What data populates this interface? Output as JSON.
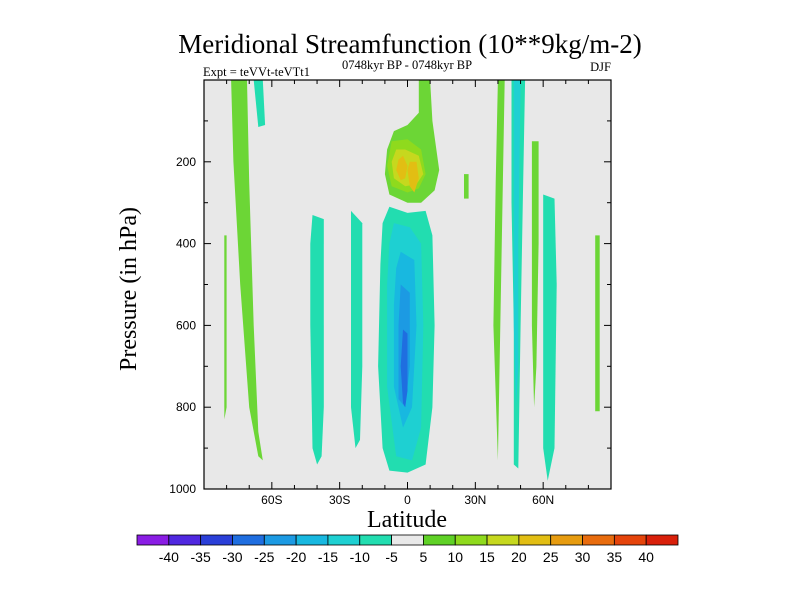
{
  "chart_data": {
    "type": "contour",
    "title": "Meridional Streamfunction (10**9kg/m-2)",
    "experiment": "Expt = teVVt-teVTt1",
    "period": "0748kyr BP - 0748kyr BP",
    "season": "DJF",
    "xlabel": "Latitude",
    "ylabel": "Pressure (in hPa)",
    "xlim": [
      -90,
      90
    ],
    "ylim": [
      1000,
      0
    ],
    "x_ticks": [
      {
        "value": -60,
        "label": "60S"
      },
      {
        "value": -30,
        "label": "30S"
      },
      {
        "value": 0,
        "label": "0"
      },
      {
        "value": 30,
        "label": "30N"
      },
      {
        "value": 60,
        "label": "60N"
      }
    ],
    "y_ticks": [
      {
        "value": 200,
        "label": "200"
      },
      {
        "value": 400,
        "label": "400"
      },
      {
        "value": 600,
        "label": "600"
      },
      {
        "value": 800,
        "label": "800"
      },
      {
        "value": 1000,
        "label": "1000"
      }
    ],
    "background_color": "#e8e8e8",
    "levels": [
      -40,
      -35,
      -30,
      -25,
      -20,
      -15,
      -10,
      -5,
      5,
      10,
      15,
      20,
      25,
      30,
      35,
      40
    ],
    "level_labels": [
      "-40",
      "-35",
      "-30",
      "-25",
      "-20",
      "-15",
      "-10",
      "-5",
      "5",
      "10",
      "15",
      "20",
      "25",
      "30",
      "35",
      "40"
    ],
    "colorbar_colors": [
      "#8a1de4",
      "#5028e0",
      "#2a3fd8",
      "#1f6ee0",
      "#1c9ae3",
      "#18b8e0",
      "#1ed0d2",
      "#22ddb0",
      "#e9e9e9",
      "#5fd126",
      "#8fda1d",
      "#c6d81e",
      "#e2be13",
      "#e79c10",
      "#e86c0e",
      "#e5440b",
      "#d9200a"
    ],
    "features": [
      {
        "name": "positive-band-60s",
        "level": 5,
        "color": "#6cd636",
        "points": [
          [
            -78,
            0
          ],
          [
            -71,
            0
          ],
          [
            -70,
            250
          ],
          [
            -68,
            600
          ],
          [
            -66,
            860
          ],
          [
            -64,
            930
          ],
          [
            -66,
            920
          ],
          [
            -70,
            800
          ],
          [
            -74,
            500
          ],
          [
            -77,
            200
          ]
        ]
      },
      {
        "name": "positive-strip-78s",
        "level": 5,
        "color": "#6cd636",
        "points": [
          [
            -81,
            380
          ],
          [
            -80,
            380
          ],
          [
            -80,
            800
          ],
          [
            -81,
            830
          ]
        ]
      },
      {
        "name": "negative-band-70s",
        "level": -5,
        "color": "#22ddb0",
        "points": [
          [
            -68,
            0
          ],
          [
            -64,
            0
          ],
          [
            -63,
            110
          ],
          [
            -66,
            115
          ]
        ]
      },
      {
        "name": "negative-column-40s",
        "level": -5,
        "color": "#22ddb0",
        "points": [
          [
            -42,
            330
          ],
          [
            -37,
            340
          ],
          [
            -37,
            800
          ],
          [
            -38,
            920
          ],
          [
            -40,
            940
          ],
          [
            -42,
            900
          ],
          [
            -43,
            600
          ],
          [
            -43,
            400
          ]
        ]
      },
      {
        "name": "negative-column-20s",
        "level": -5,
        "color": "#22ddb0",
        "points": [
          [
            -25,
            320
          ],
          [
            -20,
            350
          ],
          [
            -20,
            700
          ],
          [
            -21,
            880
          ],
          [
            -23,
            900
          ],
          [
            -25,
            800
          ],
          [
            -25,
            500
          ]
        ]
      },
      {
        "name": "negative-cell-equator",
        "level": -5,
        "color": "#22ddb0",
        "points": [
          [
            -8,
            310
          ],
          [
            0,
            325
          ],
          [
            8,
            320
          ],
          [
            11,
            380
          ],
          [
            12,
            600
          ],
          [
            11,
            800
          ],
          [
            8,
            940
          ],
          [
            0,
            960
          ],
          [
            -8,
            955
          ],
          [
            -11,
            900
          ],
          [
            -13,
            700
          ],
          [
            -12,
            450
          ],
          [
            -11,
            350
          ]
        ]
      },
      {
        "name": "negative-cell-equator-10",
        "level": -10,
        "color": "#1ed0d2",
        "points": [
          [
            -6,
            350
          ],
          [
            1,
            360
          ],
          [
            6,
            400
          ],
          [
            7,
            600
          ],
          [
            6,
            850
          ],
          [
            2,
            930
          ],
          [
            -5,
            920
          ],
          [
            -9,
            750
          ],
          [
            -9,
            500
          ],
          [
            -8,
            400
          ]
        ]
      },
      {
        "name": "negative-cell-equator-15",
        "level": -15,
        "color": "#18b8e0",
        "points": [
          [
            -3,
            420
          ],
          [
            3,
            440
          ],
          [
            4,
            600
          ],
          [
            2,
            800
          ],
          [
            -2,
            850
          ],
          [
            -6,
            750
          ],
          [
            -6,
            550
          ],
          [
            -5,
            460
          ]
        ]
      },
      {
        "name": "negative-cell-equator-20",
        "level": -20,
        "color": "#1c9ae3",
        "points": [
          [
            -3,
            500
          ],
          [
            1,
            520
          ],
          [
            1,
            700
          ],
          [
            -1,
            800
          ],
          [
            -4,
            780
          ],
          [
            -4,
            600
          ]
        ]
      },
      {
        "name": "negative-cell-equator-25",
        "level": -25,
        "color": "#1f6ee0",
        "points": [
          [
            -2,
            610
          ],
          [
            0,
            620
          ],
          [
            0,
            760
          ],
          [
            -1,
            800
          ],
          [
            -2,
            790
          ],
          [
            -3,
            700
          ]
        ]
      },
      {
        "name": "positive-jet-core",
        "level": 5,
        "color": "#6cd636",
        "points": [
          [
            5,
            0
          ],
          [
            10,
            0
          ],
          [
            11,
            100
          ],
          [
            14,
            220
          ],
          [
            12,
            270
          ],
          [
            6,
            300
          ],
          [
            0,
            300
          ],
          [
            -8,
            280
          ],
          [
            -10,
            230
          ],
          [
            -9,
            170
          ],
          [
            -6,
            125
          ],
          [
            0,
            110
          ],
          [
            5,
            80
          ]
        ]
      },
      {
        "name": "positive-jet-core-10",
        "level": 10,
        "color": "#8fda1d",
        "points": [
          [
            -7,
            150
          ],
          [
            0,
            145
          ],
          [
            6,
            170
          ],
          [
            8,
            230
          ],
          [
            5,
            265
          ],
          [
            0,
            275
          ],
          [
            -7,
            260
          ],
          [
            -9,
            210
          ]
        ]
      },
      {
        "name": "positive-jet-core-15",
        "level": 15,
        "color": "#c6d81e",
        "points": [
          [
            -5,
            170
          ],
          [
            -1,
            170
          ],
          [
            5,
            185
          ],
          [
            7,
            230
          ],
          [
            4,
            255
          ],
          [
            -1,
            260
          ],
          [
            -6,
            240
          ],
          [
            -7,
            200
          ]
        ]
      },
      {
        "name": "positive-jet-core-20a",
        "level": 20,
        "color": "#e2be13",
        "points": [
          [
            -4,
            195
          ],
          [
            -2,
            185
          ],
          [
            0,
            210
          ],
          [
            -1,
            240
          ],
          [
            -3,
            245
          ],
          [
            -5,
            220
          ]
        ]
      },
      {
        "name": "positive-jet-core-20b",
        "level": 20,
        "color": "#e2be13",
        "points": [
          [
            1,
            200
          ],
          [
            4,
            200
          ],
          [
            5,
            240
          ],
          [
            3,
            275
          ],
          [
            1,
            260
          ],
          [
            0,
            220
          ]
        ]
      },
      {
        "name": "positive-strip-25n",
        "level": 5,
        "color": "#6cd636",
        "points": [
          [
            25,
            230
          ],
          [
            27,
            230
          ],
          [
            27,
            290
          ],
          [
            25,
            290
          ]
        ]
      },
      {
        "name": "positive-strip-30n",
        "level": 5,
        "color": "#6cd636",
        "points": [
          [
            40,
            0
          ],
          [
            43,
            0
          ],
          [
            42,
            300
          ],
          [
            40,
            930
          ],
          [
            38,
            600
          ],
          [
            39,
            250
          ]
        ]
      },
      {
        "name": "negative-column-45n",
        "level": -5,
        "color": "#22ddb0",
        "points": [
          [
            46,
            0
          ],
          [
            52,
            0
          ],
          [
            51,
            300
          ],
          [
            50,
            600
          ],
          [
            49,
            950
          ],
          [
            47,
            940
          ],
          [
            47,
            600
          ],
          [
            46,
            300
          ]
        ]
      },
      {
        "name": "negative-column-45n-10",
        "level": -10,
        "color": "#1ed0d2",
        "points": [
          [
            47,
            0
          ],
          [
            50,
            0
          ],
          [
            49,
            400
          ],
          [
            49,
            700
          ],
          [
            48,
            800
          ],
          [
            47,
            600
          ],
          [
            47,
            300
          ]
        ]
      },
      {
        "name": "positive-strip-60n",
        "level": 5,
        "color": "#6cd636",
        "points": [
          [
            55,
            150
          ],
          [
            58,
            150
          ],
          [
            58,
            400
          ],
          [
            57,
            700
          ],
          [
            56,
            800
          ],
          [
            55,
            600
          ]
        ]
      },
      {
        "name": "negative-column-65n",
        "level": -5,
        "color": "#22ddb0",
        "points": [
          [
            60,
            280
          ],
          [
            65,
            290
          ],
          [
            66,
            500
          ],
          [
            65,
            900
          ],
          [
            62,
            980
          ],
          [
            60,
            900
          ],
          [
            60,
            600
          ]
        ]
      },
      {
        "name": "positive-strip-80n",
        "level": 5,
        "color": "#6cd636",
        "points": [
          [
            83,
            380
          ],
          [
            85,
            380
          ],
          [
            85,
            810
          ],
          [
            83,
            810
          ]
        ]
      }
    ]
  }
}
